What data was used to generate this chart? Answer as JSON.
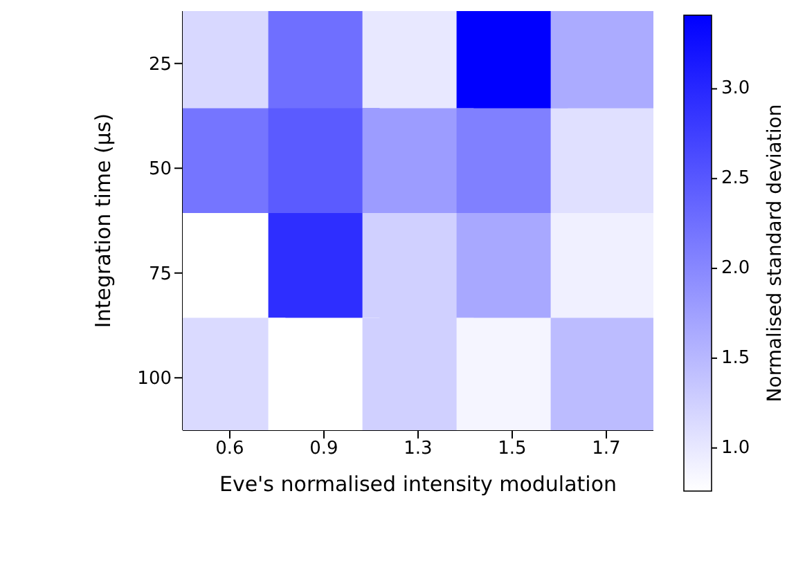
{
  "chart_data": {
    "type": "heatmap",
    "xlabel": "Eve's normalised intensity modulation",
    "ylabel": "Integration time (μs)",
    "clabel": "Normalised standard deviation",
    "categories": [
      "0.6",
      "0.9",
      "1.3",
      "1.5",
      "1.7"
    ],
    "y_categories": [
      "25",
      "50",
      "75",
      "100"
    ],
    "cells": [
      [
        1.17,
        2.26,
        1.0,
        3.41,
        1.63
      ],
      [
        2.19,
        2.46,
        1.79,
        2.08,
        1.08
      ],
      [
        0.76,
        2.93,
        1.25,
        1.66,
        0.92
      ],
      [
        1.14,
        0.76,
        1.25,
        0.86,
        1.46
      ]
    ],
    "clim": [
      0.76,
      3.41
    ],
    "cticks": [
      {
        "value": 1,
        "label": "1.0"
      },
      1.5,
      {
        "value": 2,
        "label": "2.0"
      },
      2.5,
      {
        "value": 3,
        "label": "3.0"
      }
    ]
  }
}
